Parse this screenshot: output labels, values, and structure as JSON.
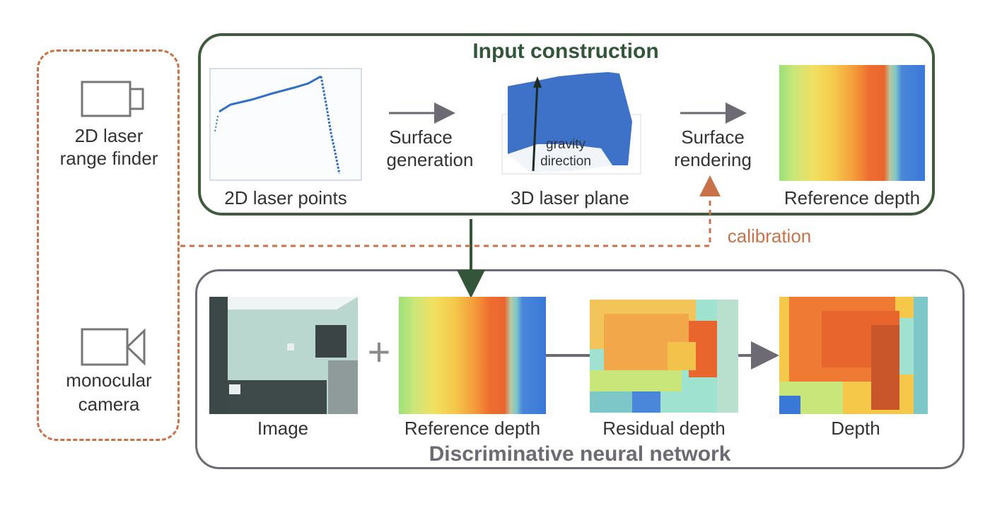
{
  "sensors": {
    "laser_label_line1": "2D laser",
    "laser_label_line2": "range finder",
    "camera_label_line1": "monocular",
    "camera_label_line2": "camera"
  },
  "input_construction": {
    "title": "Input construction",
    "laser_points_label": "2D laser points",
    "surface_generation_line1": "Surface",
    "surface_generation_line2": "generation",
    "laser_plane_label": "3D laser plane",
    "gravity_line1": "gravity",
    "gravity_line2": "direction",
    "surface_rendering_line1": "Surface",
    "surface_rendering_line2": "rendering",
    "reference_depth_label": "Reference depth"
  },
  "calibration_label": "calibration",
  "network": {
    "title": "Discriminative neural network",
    "image_label": "Image",
    "plus_symbol": "+",
    "reference_depth_label": "Reference depth",
    "residual_depth_label": "Residual depth",
    "depth_label": "Depth"
  },
  "colors": {
    "input_box": "#3f5a3c",
    "network_box": "#6e6a74",
    "calibration": "#c9724a",
    "arrow_gray": "#6e6a74"
  }
}
